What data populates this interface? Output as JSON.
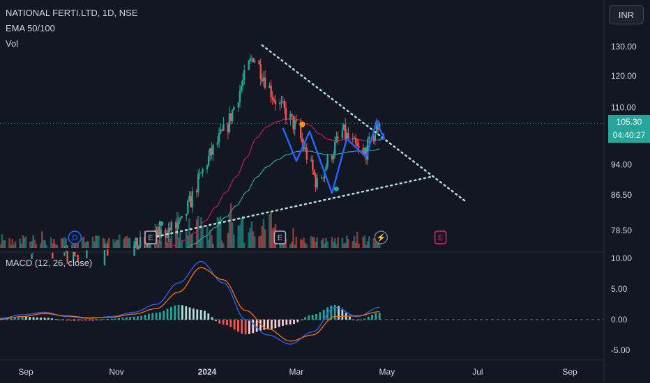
{
  "header": {
    "symbol_title": "NATIONAL FERTI.LTD, 1D, NSE",
    "ema_label": "EMA 50/100",
    "vol_label": "Vol",
    "currency": "INR"
  },
  "macd_label": "MACD (12, 26, close)",
  "last_price": {
    "value": "105.30",
    "countdown": "04:40:27",
    "color": "#26a69a"
  },
  "markers": {
    "dividend": "D",
    "earnings": "E",
    "split": "⚡"
  },
  "colors": {
    "background": "#131722",
    "up": "#26a69a",
    "down": "#ef5350",
    "ema50": "#c2185b",
    "ema100": "#26a69a",
    "pattern": "#2962ff",
    "trendline": "#b2dfdb",
    "macd": "#2962ff",
    "signal": "#ff6d00",
    "earnings_future": "#e91e63",
    "dividend": "#2962ff"
  },
  "chart_data": [
    {
      "type": "candlestick",
      "title": "NATIONAL FERTI.LTD, 1D, NSE",
      "x_ticks": [
        "Sep",
        "Nov",
        "2024",
        "Mar",
        "May",
        "Jul",
        "Sep"
      ],
      "y_ticks": [
        "130.00",
        "120.00",
        "110.00",
        "94.00",
        "86.50",
        "78.50"
      ],
      "ylim": [
        72,
        135
      ],
      "scale": "log",
      "overlays": [
        "EMA 50",
        "EMA 100",
        "Vol",
        "descending trendline",
        "ascending trendline",
        "W pattern"
      ],
      "approx_close_path": [
        {
          "date": "2023-08-15",
          "close": 72
        },
        {
          "date": "2023-11-01",
          "close": 73
        },
        {
          "date": "2023-12-15",
          "close": 80
        },
        {
          "date": "2024-01-01",
          "close": 95
        },
        {
          "date": "2024-01-15",
          "close": 105
        },
        {
          "date": "2024-02-01",
          "close": 127
        },
        {
          "date": "2024-02-15",
          "close": 113
        },
        {
          "date": "2024-03-01",
          "close": 104
        },
        {
          "date": "2024-03-15",
          "close": 89
        },
        {
          "date": "2024-04-01",
          "close": 103
        },
        {
          "date": "2024-04-15",
          "close": 96
        },
        {
          "date": "2024-04-26",
          "close": 105.3
        }
      ],
      "last": 105.3
    },
    {
      "type": "line",
      "title": "MACD (12, 26, close)",
      "y_ticks": [
        "10.00",
        "5.00",
        "0.00",
        "-5.00"
      ],
      "ylim": [
        -5.5,
        10.5
      ],
      "series": [
        {
          "name": "MACD",
          "approx_points": [
            0.2,
            0.8,
            1.2,
            0.5,
            0.2,
            0.5,
            1.2,
            2.5,
            6,
            9.5,
            6,
            0,
            -2.5,
            -4,
            -2,
            2,
            0.5,
            2
          ]
        },
        {
          "name": "Signal",
          "approx_points": [
            0.1,
            0.5,
            1.0,
            0.6,
            0.3,
            0.4,
            0.9,
            1.8,
            4.5,
            8.5,
            6.5,
            1.5,
            -1.5,
            -3.5,
            -2.5,
            0.5,
            0.6,
            1.3
          ]
        }
      ],
      "zero_line": 0
    }
  ]
}
